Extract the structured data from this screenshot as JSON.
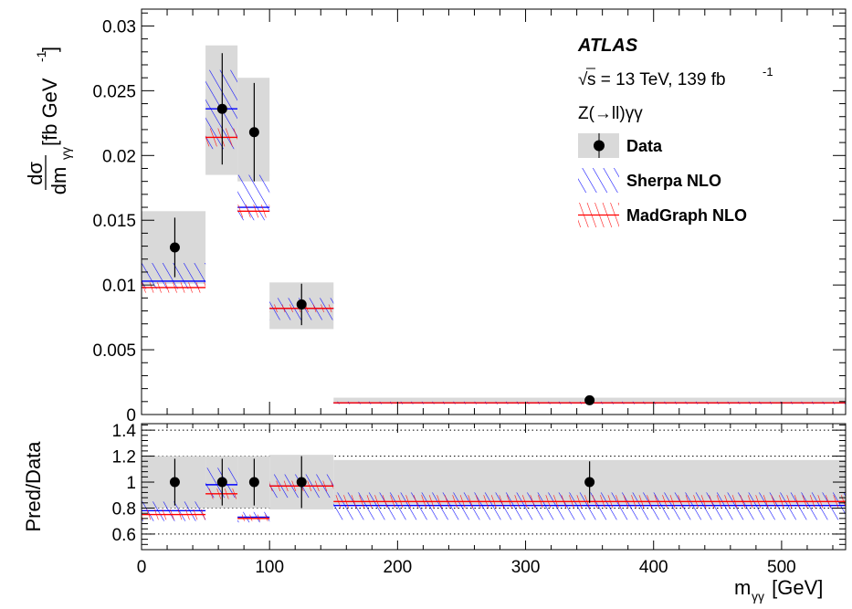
{
  "chart_data": [
    {
      "type": "scatter",
      "panel": "main",
      "ylabel": "dσ/dm_γγ [fb GeV⁻¹]",
      "ylabel_parts": {
        "num": "dσ",
        "den": "dm",
        "den_sub": "γγ",
        "units": "[fb GeV",
        "units_sup": "-1",
        "units_close": "]"
      },
      "xlim": [
        0,
        550
      ],
      "ylim": [
        0,
        0.0313
      ],
      "x_tick_labels": [],
      "y_ticks": [
        {
          "value": 0,
          "label": "0"
        },
        {
          "value": 0.005,
          "label": "0.005"
        },
        {
          "value": 0.01,
          "label": "0.01"
        },
        {
          "value": 0.015,
          "label": "0.015"
        },
        {
          "value": 0.02,
          "label": "0.02"
        },
        {
          "value": 0.025,
          "label": "0.025"
        },
        {
          "value": 0.03,
          "label": "0.03"
        }
      ],
      "bins": [
        {
          "lo": 0,
          "hi": 50,
          "center": 26,
          "data": 0.0129,
          "stat_err": 0.0023,
          "total_unc_band": [
            0.0101,
            0.0157
          ],
          "sherpa": 0.0103,
          "sherpa_band": [
            0.0097,
            0.0117
          ],
          "madgraph": 0.0098,
          "madgraph_band": [
            0.0094,
            0.0102
          ]
        },
        {
          "lo": 50,
          "hi": 75,
          "center": 63,
          "data": 0.0236,
          "stat_err": 0.0043,
          "total_unc_band": [
            0.0185,
            0.0285
          ],
          "sherpa": 0.0236,
          "sherpa_band": [
            0.0205,
            0.0266
          ],
          "madgraph": 0.0214,
          "madgraph_band": [
            0.0207,
            0.0221
          ]
        },
        {
          "lo": 75,
          "hi": 100,
          "center": 88,
          "data": 0.0218,
          "stat_err": 0.0038,
          "total_unc_band": [
            0.018,
            0.026
          ],
          "sherpa": 0.016,
          "sherpa_band": [
            0.015,
            0.0185
          ],
          "madgraph": 0.0157,
          "madgraph_band": [
            0.0152,
            0.0162
          ]
        },
        {
          "lo": 100,
          "hi": 150,
          "center": 125,
          "data": 0.0085,
          "stat_err": 0.0016,
          "total_unc_band": [
            0.0066,
            0.0102
          ],
          "sherpa": 0.0082,
          "sherpa_band": [
            0.0073,
            0.009
          ],
          "madgraph": 0.0082,
          "madgraph_band": [
            0.0079,
            0.0085
          ]
        },
        {
          "lo": 150,
          "hi": 550,
          "center": 350,
          "data": 0.0011,
          "stat_err": 0.0002,
          "total_unc_band": [
            0.0009,
            0.0013
          ],
          "sherpa": 0.0009,
          "sherpa_band": [
            0.0008,
            0.001
          ],
          "madgraph": 0.0009,
          "madgraph_band": [
            0.00085,
            0.00095
          ]
        }
      ],
      "legend_position": "top-right"
    },
    {
      "type": "scatter",
      "panel": "ratio",
      "ylabel": "Pred/Data",
      "xlabel": "m_γγ [GeV]",
      "xlabel_parts": {
        "main": "m",
        "sub": "γγ",
        "units": " [GeV]"
      },
      "xlim": [
        0,
        550
      ],
      "ylim": [
        0.48,
        1.45
      ],
      "x_ticks": [
        {
          "value": 0,
          "label": "0"
        },
        {
          "value": 100,
          "label": "100"
        },
        {
          "value": 200,
          "label": "200"
        },
        {
          "value": 300,
          "label": "300"
        },
        {
          "value": 400,
          "label": "400"
        },
        {
          "value": 500,
          "label": "500"
        }
      ],
      "y_ticks": [
        {
          "value": 0.6,
          "label": "0.6"
        },
        {
          "value": 0.8,
          "label": "0.8"
        },
        {
          "value": 1.0,
          "label": "1"
        },
        {
          "value": 1.2,
          "label": "1.2"
        },
        {
          "value": 1.4,
          "label": "1.4"
        }
      ],
      "dotted_lines": [
        0.6,
        0.8,
        1.0,
        1.2,
        1.4
      ],
      "bins": [
        {
          "lo": 0,
          "hi": 50,
          "center": 26,
          "data": 1.0,
          "stat_err": 0.18,
          "total_unc_band": [
            0.8,
            1.2
          ],
          "sherpa": 0.78,
          "sherpa_band": [
            0.7,
            0.85
          ],
          "madgraph": 0.75,
          "madgraph_band": [
            0.71,
            0.79
          ]
        },
        {
          "lo": 50,
          "hi": 75,
          "center": 63,
          "data": 1.0,
          "stat_err": 0.18,
          "total_unc_band": [
            0.8,
            1.2
          ],
          "sherpa": 0.98,
          "sherpa_band": [
            0.88,
            1.11
          ],
          "madgraph": 0.91,
          "madgraph_band": [
            0.87,
            0.95
          ]
        },
        {
          "lo": 75,
          "hi": 100,
          "center": 88,
          "data": 1.0,
          "stat_err": 0.18,
          "total_unc_band": [
            0.8,
            1.2
          ],
          "sherpa": 0.73,
          "sherpa_band": [
            0.69,
            0.77
          ],
          "madgraph": 0.72,
          "madgraph_band": [
            0.7,
            0.75
          ]
        },
        {
          "lo": 100,
          "hi": 150,
          "center": 125,
          "data": 1.0,
          "stat_err": 0.2,
          "total_unc_band": [
            0.79,
            1.21
          ],
          "sherpa": 0.97,
          "sherpa_band": [
            0.88,
            1.06
          ],
          "madgraph": 0.97,
          "madgraph_band": [
            0.93,
            1.01
          ]
        },
        {
          "lo": 150,
          "hi": 550,
          "center": 350,
          "data": 1.0,
          "stat_err": 0.16,
          "total_unc_band": [
            0.83,
            1.17
          ],
          "sherpa": 0.82,
          "sherpa_band": [
            0.71,
            0.92
          ],
          "madgraph": 0.85,
          "madgraph_band": [
            0.8,
            0.9
          ]
        }
      ]
    }
  ],
  "legend": {
    "experiment": "ATLAS",
    "energy_line": {
      "sqrt": "√",
      "s": "s = 13 TeV, 139 fb",
      "sup": "-1"
    },
    "process": "Z(→ll)γγ",
    "entries": [
      {
        "label": "Data",
        "kind": "data"
      },
      {
        "label": "Sherpa NLO",
        "kind": "sherpa"
      },
      {
        "label": "MadGraph NLO",
        "kind": "madgraph"
      }
    ]
  },
  "colors": {
    "band_gray": "#d9d9d9",
    "sherpa": "#0000ff",
    "madgraph": "#ff0000",
    "data": "#000000"
  }
}
